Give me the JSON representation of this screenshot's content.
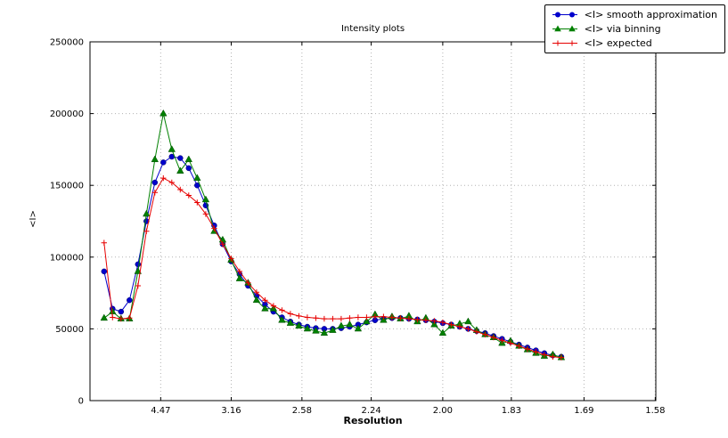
{
  "chart_data": {
    "type": "line",
    "title": "Intensity plots",
    "xlabel": "Resolution",
    "ylabel": "<I>",
    "xlim": [
      0,
      0.401
    ],
    "ylim": [
      0,
      250000
    ],
    "grid": "dotted",
    "legend_position": "top-right",
    "xtick_labels": [
      "4.47",
      "3.16",
      "2.58",
      "2.24",
      "2.00",
      "1.83",
      "1.69",
      "1.58"
    ],
    "xtick_positions": [
      0.0501,
      0.1001,
      0.1502,
      0.1993,
      0.25,
      0.2986,
      0.3501,
      0.4006
    ],
    "ytick_labels": [
      "0",
      "50000",
      "100000",
      "150000",
      "200000",
      "250000"
    ],
    "x": [
      0.01,
      0.016,
      0.022,
      0.028,
      0.034,
      0.04,
      0.046,
      0.052,
      0.058,
      0.064,
      0.07,
      0.076,
      0.082,
      0.088,
      0.094,
      0.1,
      0.106,
      0.112,
      0.118,
      0.124,
      0.13,
      0.136,
      0.142,
      0.148,
      0.154,
      0.16,
      0.166,
      0.172,
      0.178,
      0.184,
      0.19,
      0.196,
      0.202,
      0.208,
      0.214,
      0.22,
      0.226,
      0.232,
      0.238,
      0.244,
      0.25,
      0.256,
      0.262,
      0.268,
      0.274,
      0.28,
      0.286,
      0.292,
      0.298,
      0.304,
      0.31,
      0.316,
      0.322,
      0.328,
      0.334
    ],
    "series": [
      {
        "id": "smooth-approximation",
        "name": "<I> smooth approximation",
        "color": "#0000cc",
        "marker": "circle",
        "values": [
          90000,
          64000,
          62000,
          70000,
          95000,
          125000,
          152000,
          166000,
          170000,
          169000,
          162000,
          150000,
          136000,
          122000,
          109000,
          97000,
          88000,
          80000,
          73000,
          67000,
          62000,
          58000,
          55000,
          53000,
          51500,
          50500,
          50000,
          50000,
          50500,
          51500,
          53000,
          54500,
          56000,
          57000,
          57500,
          57500,
          57000,
          56500,
          56000,
          55000,
          54000,
          53000,
          51500,
          50000,
          48500,
          47000,
          45000,
          43000,
          41000,
          39000,
          37000,
          35000,
          33000,
          31500,
          30500
        ]
      },
      {
        "id": "via-binning",
        "name": "<I> via binning",
        "color": "#008000",
        "marker": "triangle",
        "values": [
          57500,
          62000,
          57000,
          57000,
          90000,
          130000,
          168000,
          200000,
          175000,
          160000,
          168000,
          155000,
          140000,
          118000,
          112000,
          98000,
          85000,
          82000,
          70000,
          64000,
          64000,
          56000,
          54000,
          52000,
          50000,
          48500,
          47000,
          49000,
          52000,
          53000,
          50000,
          55000,
          60000,
          56000,
          58500,
          57000,
          59000,
          55000,
          57500,
          53000,
          47000,
          52000,
          53500,
          55000,
          49000,
          46000,
          44000,
          40000,
          41500,
          38000,
          35500,
          33000,
          31000,
          32000,
          30000
        ]
      },
      {
        "id": "expected",
        "name": "<I> expected",
        "color": "#e60000",
        "marker": "plus",
        "values": [
          110000,
          58000,
          57000,
          57500,
          80000,
          118000,
          145000,
          155000,
          152000,
          147000,
          143000,
          138000,
          130000,
          120000,
          109000,
          99000,
          90000,
          82000,
          75500,
          70000,
          66000,
          63000,
          60500,
          59000,
          58000,
          57500,
          57000,
          57000,
          57000,
          57500,
          58000,
          58000,
          58500,
          58500,
          58000,
          57500,
          57000,
          56500,
          56000,
          55500,
          54500,
          53000,
          51500,
          50000,
          48000,
          46000,
          44000,
          42000,
          40000,
          38000,
          36000,
          34000,
          32000,
          30500,
          30000
        ]
      }
    ]
  }
}
